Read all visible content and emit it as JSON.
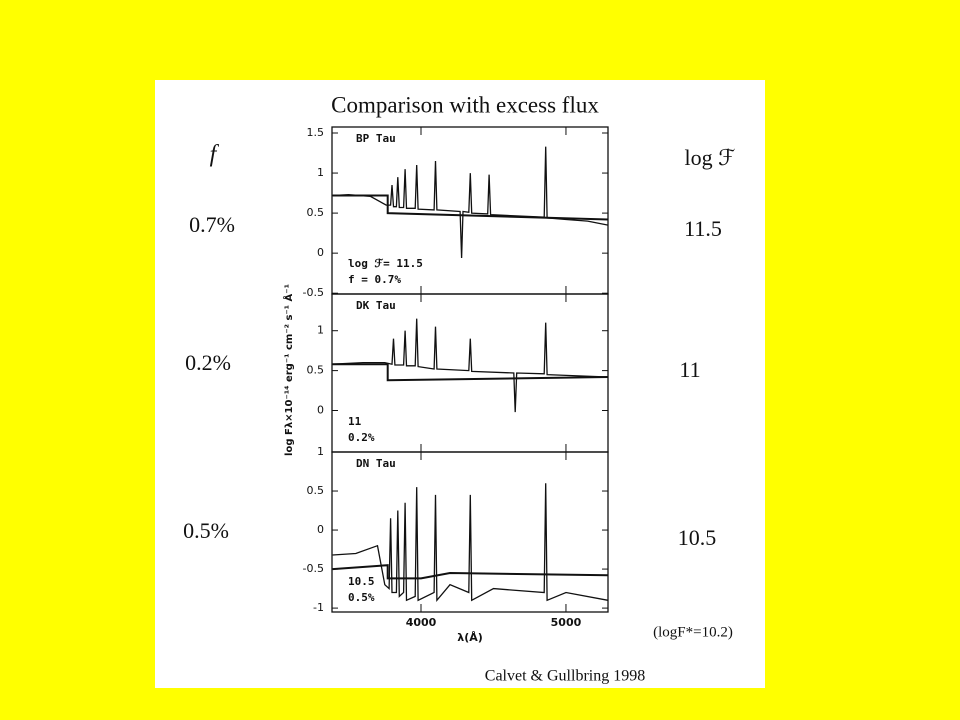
{
  "slide": {
    "title": "Comparison with excess flux",
    "left_column": {
      "header": "f",
      "items": [
        "0.7%",
        "0.2%",
        "0.5%"
      ]
    },
    "right_column": {
      "header": "log ℱ",
      "items": [
        "11.5",
        "11",
        "10.5"
      ],
      "footnote": "(logF*=10.2)"
    },
    "credit": "Calvet & Gullbring 1998"
  },
  "chart_data": [
    {
      "type": "line",
      "title": "BP Tau",
      "annotations": [
        "log ℱ= 11.5",
        "f = 0.7%"
      ],
      "xlim": [
        3386,
        5290
      ],
      "xticks": [
        4000,
        5000
      ],
      "ylim": [
        -0.51,
        1.575
      ],
      "yticks": [
        -0.5,
        0,
        0.5,
        1,
        1.5
      ],
      "series": [
        {
          "color": "#111111",
          "x": [
            3390,
            3500,
            3650,
            3760,
            3790,
            3800,
            3810,
            3830,
            3840,
            3850,
            3880,
            3890,
            3900,
            3960,
            3970,
            3980,
            4090,
            4100,
            4110,
            4270,
            4280,
            4290,
            4330,
            4340,
            4350,
            4460,
            4470,
            4480,
            4850,
            4860,
            4870,
            5000,
            5150,
            5290
          ],
          "values": [
            0.72,
            0.73,
            0.71,
            0.6,
            0.6,
            0.85,
            0.58,
            0.58,
            0.95,
            0.57,
            0.57,
            1.05,
            0.56,
            0.56,
            1.1,
            0.55,
            0.54,
            1.15,
            0.54,
            0.52,
            -0.06,
            0.52,
            0.51,
            1.0,
            0.5,
            0.49,
            0.98,
            0.48,
            0.45,
            1.33,
            0.44,
            0.42,
            0.4,
            0.35
          ]
        },
        {
          "color": "#111111",
          "x": [
            3390,
            3770,
            3770,
            5290
          ],
          "values": [
            0.72,
            0.72,
            0.5,
            0.42
          ]
        }
      ]
    },
    {
      "type": "line",
      "title": "DK Tau",
      "annotations": [
        "11",
        "0.2%"
      ],
      "xlim": [
        3386,
        5290
      ],
      "xticks": [
        4000,
        5000
      ],
      "ylim": [
        -0.52,
        1.46
      ],
      "yticks": [
        0,
        0.5,
        1
      ],
      "series": [
        {
          "color": "#111111",
          "x": [
            3390,
            3600,
            3750,
            3800,
            3810,
            3820,
            3880,
            3890,
            3900,
            3960,
            3970,
            3980,
            4090,
            4100,
            4110,
            4330,
            4340,
            4350,
            4640,
            4650,
            4660,
            4850,
            4860,
            4870,
            5000,
            5290
          ],
          "values": [
            0.58,
            0.6,
            0.6,
            0.58,
            0.9,
            0.57,
            0.57,
            1.0,
            0.56,
            0.56,
            1.15,
            0.55,
            0.52,
            1.05,
            0.52,
            0.5,
            0.9,
            0.49,
            0.47,
            -0.02,
            0.47,
            0.46,
            1.1,
            0.45,
            0.44,
            0.42
          ]
        },
        {
          "color": "#111111",
          "x": [
            3390,
            3770,
            3770,
            5290
          ],
          "values": [
            0.58,
            0.58,
            0.38,
            0.42
          ]
        }
      ]
    },
    {
      "type": "line",
      "title": "DN Tau",
      "annotations": [
        "10.5",
        "0.5%"
      ],
      "xlabel": "λ(Å)",
      "ylabel": "log Fλ×10⁻¹⁴ erg⁻¹ cm⁻² s⁻¹ Å⁻¹",
      "xlim": [
        3386,
        5290
      ],
      "xticks": [
        4000,
        5000
      ],
      "ylim": [
        -1.05,
        1
      ],
      "yticks": [
        -1,
        -0.5,
        0,
        0.5,
        1
      ],
      "series": [
        {
          "color": "#111111",
          "x": [
            3390,
            3550,
            3700,
            3750,
            3780,
            3790,
            3800,
            3830,
            3840,
            3850,
            3880,
            3890,
            3900,
            3960,
            3970,
            3980,
            4090,
            4100,
            4110,
            4200,
            4330,
            4340,
            4350,
            4500,
            4850,
            4860,
            4870,
            5000,
            5290
          ],
          "values": [
            -0.32,
            -0.3,
            -0.2,
            -0.7,
            -0.75,
            0.15,
            -0.8,
            -0.8,
            0.25,
            -0.85,
            -0.8,
            0.35,
            -0.9,
            -0.85,
            0.55,
            -0.9,
            -0.8,
            0.45,
            -0.9,
            -0.7,
            -0.8,
            0.45,
            -0.9,
            -0.75,
            -0.8,
            0.6,
            -0.9,
            -0.8,
            -0.9
          ]
        },
        {
          "color": "#111111",
          "x": [
            3390,
            3770,
            3770,
            4000,
            4200,
            5290
          ],
          "values": [
            -0.5,
            -0.45,
            -0.62,
            -0.62,
            -0.55,
            -0.58
          ]
        }
      ]
    }
  ]
}
